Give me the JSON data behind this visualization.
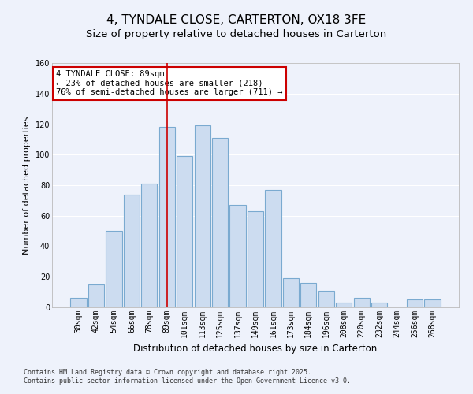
{
  "title": "4, TYNDALE CLOSE, CARTERTON, OX18 3FE",
  "subtitle": "Size of property relative to detached houses in Carterton",
  "xlabel": "Distribution of detached houses by size in Carterton",
  "ylabel": "Number of detached properties",
  "categories": [
    "30sqm",
    "42sqm",
    "54sqm",
    "66sqm",
    "78sqm",
    "89sqm",
    "101sqm",
    "113sqm",
    "125sqm",
    "137sqm",
    "149sqm",
    "161sqm",
    "173sqm",
    "184sqm",
    "196sqm",
    "208sqm",
    "220sqm",
    "232sqm",
    "244sqm",
    "256sqm",
    "268sqm"
  ],
  "values": [
    6,
    15,
    50,
    74,
    81,
    118,
    99,
    119,
    111,
    67,
    63,
    77,
    19,
    16,
    11,
    3,
    6,
    3,
    0,
    5,
    5
  ],
  "bar_color": "#ccdcf0",
  "bar_edgecolor": "#7aaad0",
  "highlight_index": 5,
  "highlight_line_color": "#cc0000",
  "ylim": [
    0,
    160
  ],
  "yticks": [
    0,
    20,
    40,
    60,
    80,
    100,
    120,
    140,
    160
  ],
  "annotation_line1": "4 TYNDALE CLOSE: 89sqm",
  "annotation_line2": "← 23% of detached houses are smaller (218)",
  "annotation_line3": "76% of semi-detached houses are larger (711) →",
  "annotation_box_color": "#ffffff",
  "annotation_box_edgecolor": "#cc0000",
  "footnote1": "Contains HM Land Registry data © Crown copyright and database right 2025.",
  "footnote2": "Contains public sector information licensed under the Open Government Licence v3.0.",
  "background_color": "#eef2fb",
  "grid_color": "#ffffff",
  "title_fontsize": 11,
  "subtitle_fontsize": 9.5,
  "tick_fontsize": 7,
  "xlabel_fontsize": 8.5,
  "ylabel_fontsize": 8,
  "annotation_fontsize": 7.5,
  "footnote_fontsize": 6
}
